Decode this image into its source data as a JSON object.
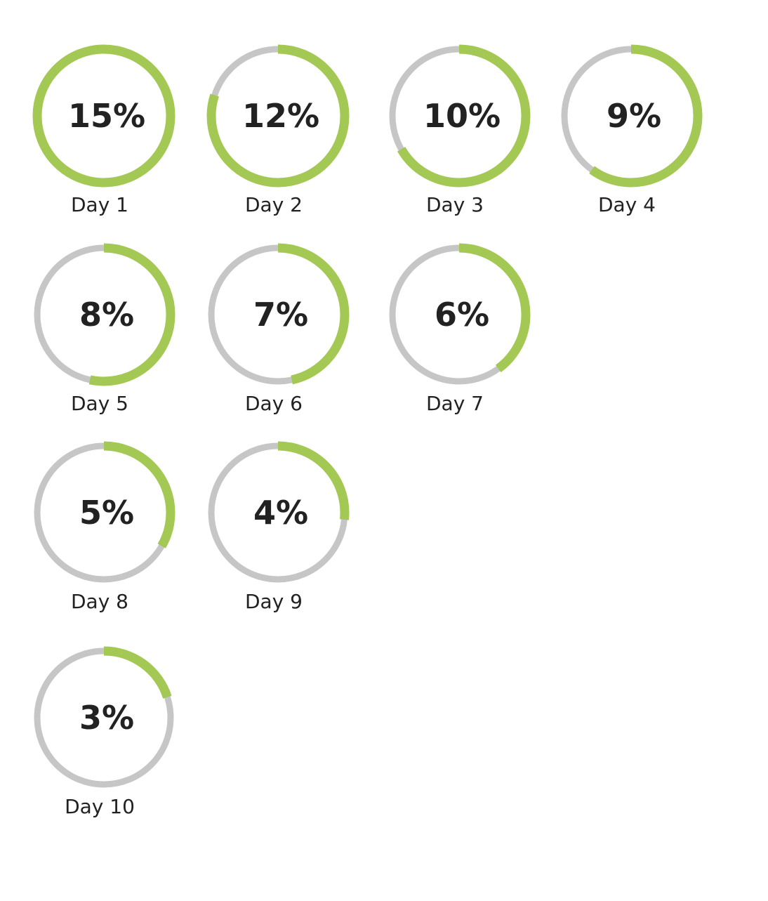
{
  "chart_data": {
    "type": "progress-rings",
    "colors": {
      "progress": "#a3c853",
      "track": "#c6c6c6",
      "text": "#222222"
    },
    "max": 15,
    "items": [
      {
        "label": "Day 1",
        "value": 15,
        "display": "15%"
      },
      {
        "label": "Day 2",
        "value": 12,
        "display": "12%"
      },
      {
        "label": "Day 3",
        "value": 10,
        "display": "10%"
      },
      {
        "label": "Day 4",
        "value": 9,
        "display": "9%"
      },
      {
        "label": "Day 5",
        "value": 8,
        "display": "8%"
      },
      {
        "label": "Day 6",
        "value": 7,
        "display": "7%"
      },
      {
        "label": "Day 7",
        "value": 6,
        "display": "6%"
      },
      {
        "label": "Day 8",
        "value": 5,
        "display": "5%"
      },
      {
        "label": "Day 9",
        "value": 4,
        "display": "4%"
      },
      {
        "label": "Day 10",
        "value": 3,
        "display": "3%"
      }
    ]
  }
}
